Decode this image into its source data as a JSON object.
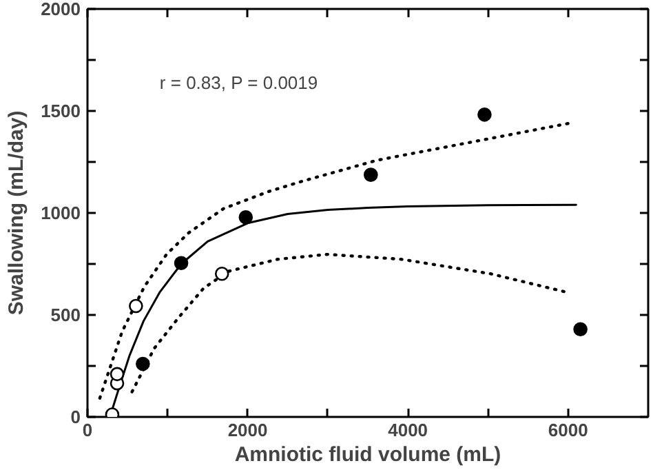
{
  "chart_data": {
    "type": "scatter",
    "xlabel": "Amniotic fluid volume (mL)",
    "ylabel": "Swallowing (mL/day)",
    "annotations": [
      "r = 0.83, P = 0.0019"
    ],
    "xlim": [
      0,
      7000
    ],
    "ylim": [
      0,
      2000
    ],
    "xticks": [
      0,
      {
        "value": 1000,
        "label": null
      },
      2000,
      {
        "value": 3000,
        "label": null
      },
      4000,
      {
        "value": 5000,
        "label": null
      },
      6000
    ],
    "yticks": [
      0,
      {
        "value": 250,
        "label": null
      },
      500,
      {
        "value": 750,
        "label": null
      },
      1000,
      {
        "value": 1250,
        "label": null
      },
      1500,
      {
        "value": 1750,
        "label": null
      },
      2000
    ],
    "grid": false,
    "series": [
      {
        "type": "line",
        "color": "#000000",
        "line_style": "solid",
        "marker": "none",
        "x": [
          280,
          400,
          524,
          700,
          900,
          1170,
          1500,
          2000,
          2500,
          3000,
          3500,
          4000,
          5000,
          6100
        ],
        "values": [
          0,
          150,
          300,
          470,
          610,
          750,
          860,
          950,
          995,
          1015,
          1025,
          1032,
          1038,
          1040
        ]
      },
      {
        "type": "line",
        "color": "#000000",
        "line_style": "dotted",
        "marker": "none",
        "x": [
          154,
          432,
          709,
          987,
          1265,
          1698,
          2254,
          2685,
          3611,
          6019
        ],
        "values": [
          92,
          418,
          638,
          797,
          903,
          1021,
          1104,
          1156,
          1258,
          1440
        ]
      },
      {
        "type": "line",
        "color": "#000000",
        "line_style": "dotted",
        "marker": "none",
        "x": [
          556,
          833,
          1142,
          1450,
          1759,
          2376,
          2994,
          3920,
          5031,
          6019
        ],
        "values": [
          123,
          336,
          489,
          631,
          714,
          773,
          797,
          773,
          702,
          608
        ]
      },
      {
        "color": "#000000",
        "marker": "circle",
        "x": [
          691,
          1170,
          1976,
          3537,
          4957,
          6154
        ],
        "values": [
          260,
          754,
          979,
          1187,
          1482,
          430
        ]
      },
      {
        "color": "#ffffff",
        "marker": "circle",
        "x": [
          309,
          370,
          370,
          605,
          1679
        ],
        "values": [
          12,
          165,
          210,
          544,
          702
        ]
      }
    ]
  }
}
